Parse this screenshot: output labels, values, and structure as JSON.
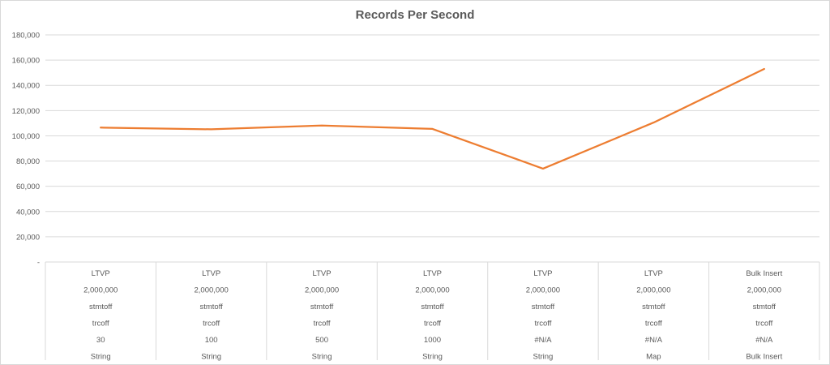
{
  "chart_data": {
    "type": "line",
    "title": "Records Per Second",
    "xlabel": "",
    "ylabel": "",
    "ylim": [
      0,
      180000
    ],
    "y_ticks": [
      "-",
      "20,000",
      "40,000",
      "60,000",
      "80,000",
      "100,000",
      "120,000",
      "140,000",
      "160,000",
      "180,000"
    ],
    "grid": true,
    "legend": "none",
    "line_color": "#ED7D31",
    "categories": [
      [
        "LTVP",
        "2,000,000",
        "stmtoff",
        "trcoff",
        "30",
        "String"
      ],
      [
        "LTVP",
        "2,000,000",
        "stmtoff",
        "trcoff",
        "100",
        "String"
      ],
      [
        "LTVP",
        "2,000,000",
        "stmtoff",
        "trcoff",
        "500",
        "String"
      ],
      [
        "LTVP",
        "2,000,000",
        "stmtoff",
        "trcoff",
        "1000",
        "String"
      ],
      [
        "LTVP",
        "2,000,000",
        "stmtoff",
        "trcoff",
        "#N/A",
        "String"
      ],
      [
        "LTVP",
        "2,000,000",
        "stmtoff",
        "trcoff",
        "#N/A",
        "Map"
      ],
      [
        "Bulk Insert",
        "2,000,000",
        "stmtoff",
        "trcoff",
        "#N/A",
        "Bulk Insert"
      ]
    ],
    "series": [
      {
        "values": [
          106500,
          105200,
          108200,
          105500,
          74000,
          110500,
          153000
        ]
      }
    ]
  }
}
